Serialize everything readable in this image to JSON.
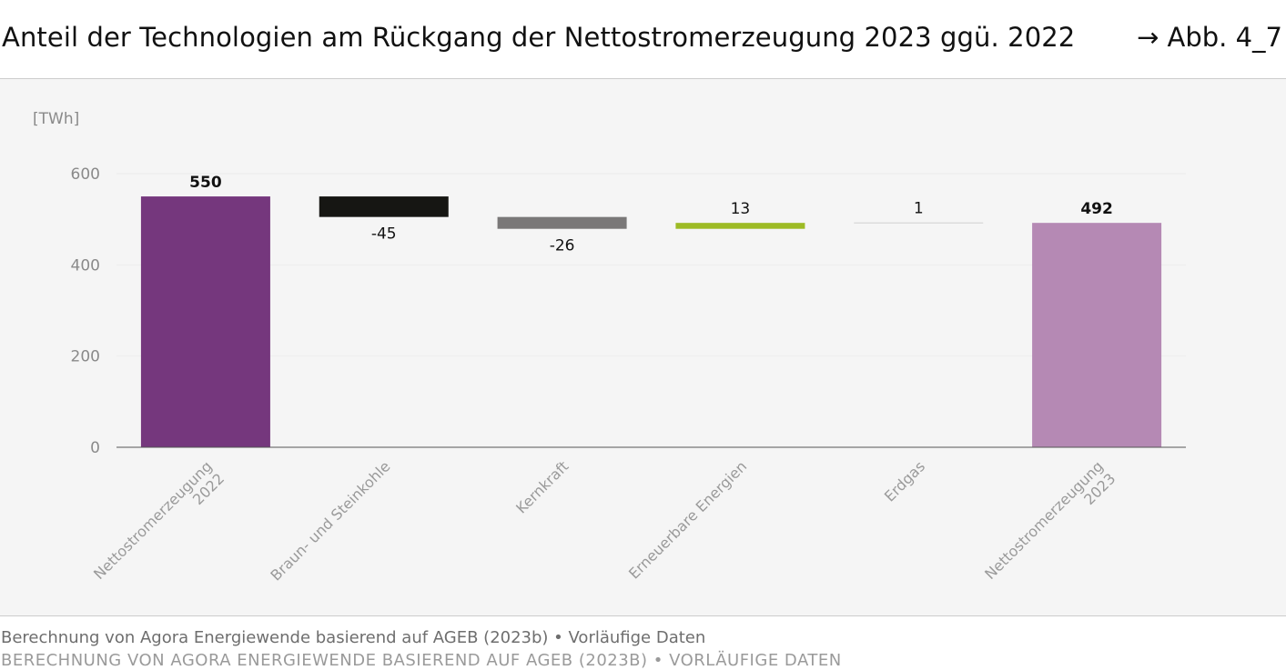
{
  "header": {
    "title": "Anteil der Technologien am Rückgang der Nettostromerzeugung 2023 ggü. 2022",
    "figure_ref": "→ Abb. 4_7"
  },
  "footer": {
    "source": "Berechnung von Agora Energiewende basierend auf AGEB (2023b) • Vorläufige Daten",
    "source_cutoff": "Berechnung von Agora Energiewende basierend auf AGEB (2023b) • Vorläufige Daten"
  },
  "colors": {
    "total_2022": "#75377d",
    "kohle": "#161613",
    "kernkraft": "#7a7878",
    "erneuerbare": "#9dbb25",
    "erdgas": "#cfcfcf",
    "total_2023": "#b589b4",
    "axis": "#555555",
    "grid": "#ececec"
  },
  "chart_data": {
    "type": "bar",
    "subtype": "waterfall",
    "ylabel": "[TWh]",
    "ylim": [
      0,
      600
    ],
    "yticks": [
      0,
      200,
      400,
      600
    ],
    "grid": true,
    "categories": [
      [
        "Nettostromerzeugung",
        "2022"
      ],
      [
        "Braun- und Steinkohle"
      ],
      [
        "Kernkraft"
      ],
      [
        "Erneuerbare Energien"
      ],
      [
        "Erdgas"
      ],
      [
        "Nettostromerzeugung",
        "2023"
      ]
    ],
    "bars": [
      {
        "kind": "total",
        "start": 0,
        "end": 550,
        "label": "550",
        "bold": true,
        "color_key": "total_2022"
      },
      {
        "kind": "delta",
        "start": 550,
        "end": 505,
        "label": "-45",
        "bold": false,
        "color_key": "kohle"
      },
      {
        "kind": "delta",
        "start": 505,
        "end": 479,
        "label": "-26",
        "bold": false,
        "color_key": "kernkraft"
      },
      {
        "kind": "delta",
        "start": 479,
        "end": 492,
        "label": "13",
        "bold": false,
        "color_key": "erneuerbare"
      },
      {
        "kind": "delta",
        "start": 492,
        "end": 493,
        "label": "1",
        "bold": false,
        "color_key": "erdgas"
      },
      {
        "kind": "total",
        "start": 0,
        "end": 492,
        "label": "492",
        "bold": true,
        "color_key": "total_2023"
      }
    ]
  }
}
